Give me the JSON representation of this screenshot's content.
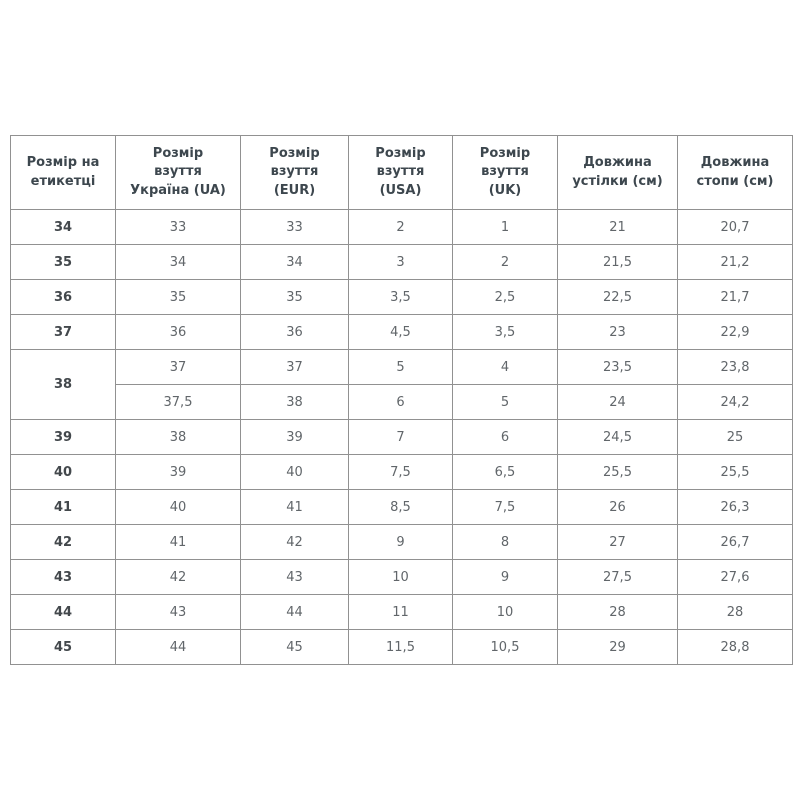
{
  "ui": {
    "background_color": "#ffffff",
    "border_color": "#919191",
    "header_text_color": "#3d474e",
    "body_text_color": "#61666a",
    "label_text_color": "#43484c",
    "header_lines": [
      [
        "Розмір на",
        "етикетці"
      ],
      [
        "Розмір",
        "взуття",
        "Україна (UA)"
      ],
      [
        "Розмір",
        "взуття",
        "(EUR)"
      ],
      [
        "Розмір",
        "взуття",
        "(USA)"
      ],
      [
        "Розмір",
        "взуття",
        "(UK)"
      ],
      [
        "Довжина",
        "устілки (см)"
      ],
      [
        "Довжина",
        "стопи (см)"
      ]
    ]
  },
  "chart_data": {
    "type": "table",
    "columns": [
      "Розмір на етикетці",
      "Розмір взуття Україна (UA)",
      "Розмір взуття (EUR)",
      "Розмір взуття (USA)",
      "Розмір взуття (UK)",
      "Довжина устілки (см)",
      "Довжина стопи (см)"
    ],
    "rows": [
      [
        "34",
        "33",
        "33",
        "2",
        "1",
        "21",
        "20,7"
      ],
      [
        "35",
        "34",
        "34",
        "3",
        "2",
        "21,5",
        "21,2"
      ],
      [
        "36",
        "35",
        "35",
        "3,5",
        "2,5",
        "22,5",
        "21,7"
      ],
      [
        "37",
        "36",
        "36",
        "4,5",
        "3,5",
        "23",
        "22,9"
      ],
      [
        "38",
        "37",
        "37",
        "5",
        "4",
        "23,5",
        "23,8"
      ],
      [
        "38",
        "37,5",
        "38",
        "6",
        "5",
        "24",
        "24,2"
      ],
      [
        "39",
        "38",
        "39",
        "7",
        "6",
        "24,5",
        "25"
      ],
      [
        "40",
        "39",
        "40",
        "7,5",
        "6,5",
        "25,5",
        "25,5"
      ],
      [
        "41",
        "40",
        "41",
        "8,5",
        "7,5",
        "26",
        "26,3"
      ],
      [
        "42",
        "41",
        "42",
        "9",
        "8",
        "27",
        "26,7"
      ],
      [
        "43",
        "42",
        "43",
        "10",
        "9",
        "27,5",
        "27,6"
      ],
      [
        "44",
        "43",
        "44",
        "11",
        "10",
        "28",
        "28"
      ],
      [
        "45",
        "44",
        "45",
        "11,5",
        "10,5",
        "29",
        "28,8"
      ]
    ],
    "merged_cells": "label 38 spans rows 5-6 (rowspan 2 in first column)"
  }
}
